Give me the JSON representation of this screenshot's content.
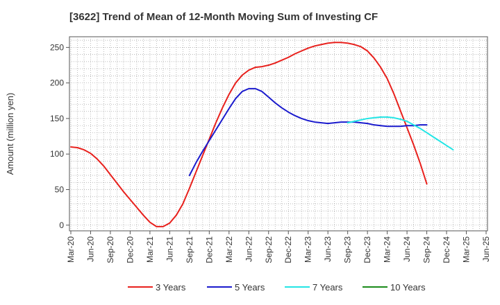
{
  "chart_data": {
    "type": "line",
    "title": "[3622]  Trend of Mean of 12-Month Moving Sum of Investing CF",
    "xlabel": "",
    "ylabel": "Amount (million yen)",
    "ylim": [
      -8,
      265
    ],
    "yticks": [
      0,
      50,
      100,
      150,
      200,
      250
    ],
    "x_tick_labels": [
      "Mar-20",
      "Jun-20",
      "Sep-20",
      "Dec-20",
      "Mar-21",
      "Jun-21",
      "Sep-21",
      "Dec-21",
      "Mar-22",
      "Jun-22",
      "Sep-22",
      "Dec-22",
      "Mar-23",
      "Jun-23",
      "Sep-23",
      "Dec-23",
      "Mar-24",
      "Jun-24",
      "Sep-24",
      "Dec-24",
      "Mar-25",
      "Jun-25"
    ],
    "grid": true,
    "legend_position": "bottom",
    "series": [
      {
        "name": "3 Years",
        "color": "#e8201c",
        "start_index": 0,
        "values": [
          110,
          109,
          106,
          101,
          93,
          83,
          71,
          59,
          47,
          36,
          25,
          14,
          4,
          -2,
          -2,
          3,
          14,
          30,
          52,
          75,
          98,
          121,
          144,
          165,
          184,
          200,
          211,
          218,
          222,
          223,
          225,
          228,
          232,
          236,
          241,
          245,
          249,
          252,
          254,
          256,
          257,
          257,
          256,
          254,
          251,
          245,
          235,
          222,
          206,
          185,
          161,
          137,
          113,
          87,
          58
        ]
      },
      {
        "name": "5 Years",
        "color": "#1a1acd",
        "start_index": 18,
        "values": [
          70,
          88,
          104,
          119,
          134,
          149,
          164,
          178,
          188,
          192,
          192,
          188,
          180,
          172,
          165,
          159,
          154,
          150,
          147,
          145,
          144,
          143,
          144,
          145,
          145,
          145,
          144,
          143,
          141,
          140,
          139,
          139,
          139,
          140,
          140,
          141,
          141
        ]
      },
      {
        "name": "7 Years",
        "color": "#22e5e5",
        "start_index": 42,
        "values": [
          144,
          146,
          148,
          150,
          151,
          152,
          152,
          151,
          149,
          146,
          141,
          136,
          130,
          124,
          118,
          112,
          106
        ]
      },
      {
        "name": "10 Years",
        "color": "#1a8a1a",
        "start_index": 0,
        "values": []
      }
    ]
  }
}
